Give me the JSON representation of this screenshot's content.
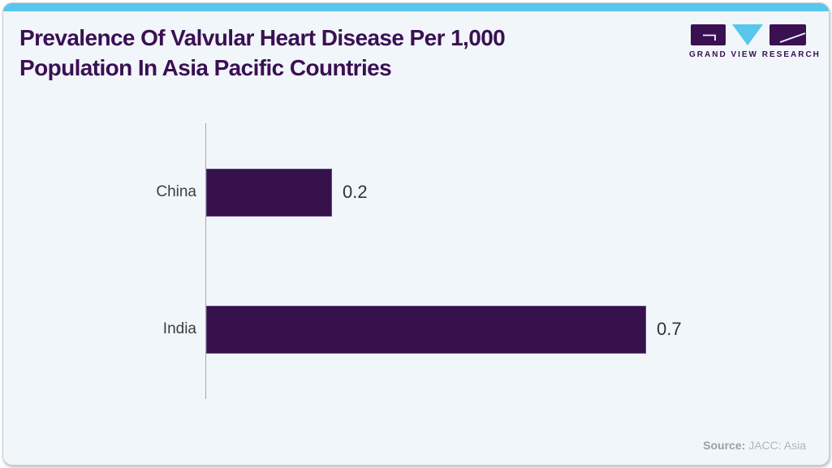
{
  "header": {
    "title": "Prevalence Of Valvular Heart Disease Per 1,000\nPopulation In Asia Pacific Countries",
    "logo_text": "GRAND VIEW RESEARCH"
  },
  "footer": {
    "source_label": "Source:",
    "source_value": "JACC: Asia"
  },
  "colors": {
    "accent_cyan": "#58C6ED",
    "brand_purple": "#3B1053",
    "bar_purple": "#36114B",
    "card_background": "#F1F6FA",
    "axis_gray": "#A6A6A6",
    "category_label_gray": "#3D3D3D",
    "value_label_gray": "#2E3338",
    "source_gray": "#AEB6BD"
  },
  "chart_data": {
    "type": "bar",
    "orientation": "horizontal",
    "title": "Prevalence Of Valvular Heart Disease Per 1,000 Population In Asia Pacific Countries",
    "categories": [
      "China",
      "India"
    ],
    "values": [
      0.2,
      0.7
    ],
    "value_labels": [
      "0.2",
      "0.7"
    ],
    "xlabel": "",
    "ylabel": "",
    "xlim": [
      0,
      0.7
    ],
    "grid": false,
    "legend": null,
    "source": "JACC: Asia"
  }
}
